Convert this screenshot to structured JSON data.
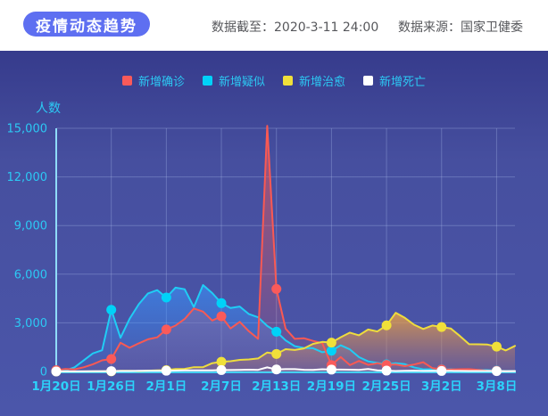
{
  "header": {
    "title_badge": "疫情动态趋势",
    "data_cutoff": "数据截至：2020-3-11 24:00",
    "data_source": "数据来源：国家卫健委"
  },
  "colors": {
    "badge_bg": "#5e6ff1",
    "header_text": "#56575b",
    "panel_top": "#363b8c",
    "panel_bottom": "#4b56aa",
    "grid": "rgba(173,192,240,0.32)",
    "y_axis_line": "#8fdcf8",
    "x_axis_line": "#45d0f2",
    "y_tick_label": "#2cc9f4",
    "x_tick_label": "#2cd3fb",
    "legend_text": "#2cc9f4"
  },
  "chart_data": {
    "type": "area",
    "title": "疫情动态趋势",
    "ylabel": "人数",
    "grid": true,
    "legend_position": "top",
    "ylim": [
      0,
      15000
    ],
    "yticks": [
      0,
      3000,
      6000,
      9000,
      12000,
      15000
    ],
    "ytick_labels": [
      "0",
      "3,000",
      "6,000",
      "9,000",
      "12,000",
      "15,000"
    ],
    "x_tick_indices": [
      0,
      6,
      12,
      18,
      24,
      30,
      36,
      42,
      48
    ],
    "x_tick_labels": [
      "1月20日",
      "1月26日",
      "2月1日",
      "2月7日",
      "2月13日",
      "2月19日",
      "2月25日",
      "3月2日",
      "3月8日"
    ],
    "dates": [
      "1.20",
      "1.21",
      "1.22",
      "1.23",
      "1.24",
      "1.25",
      "1.26",
      "1.27",
      "1.28",
      "1.29",
      "1.30",
      "1.31",
      "2.1",
      "2.2",
      "2.3",
      "2.4",
      "2.5",
      "2.6",
      "2.7",
      "2.8",
      "2.9",
      "2.10",
      "2.11",
      "2.12",
      "2.13",
      "2.14",
      "2.15",
      "2.16",
      "2.17",
      "2.18",
      "2.19",
      "2.20",
      "2.21",
      "2.22",
      "2.23",
      "2.24",
      "2.25",
      "2.26",
      "2.27",
      "2.28",
      "2.29",
      "3.1",
      "3.2",
      "3.3",
      "3.4",
      "3.5",
      "3.6",
      "3.7",
      "3.8",
      "3.9",
      "3.10"
    ],
    "series": [
      {
        "key": "suspected",
        "name": "新增疑似",
        "color": "#20cdf5",
        "swatch": "#00d2f8",
        "area_fill": [
          "rgba(56,150,255,0.60)",
          "rgba(56,150,255,0.06)"
        ],
        "values": [
          27,
          53,
          257,
          680,
          1118,
          1309,
          3806,
          2077,
          3248,
          4148,
          4812,
          5019,
          4562,
          5173,
          5072,
          3971,
          5328,
          4833,
          4214,
          3916,
          4008,
          3536,
          3342,
          2807,
          2450,
          1918,
          1563,
          1451,
          1432,
          1185,
          1277,
          1614,
          1361,
          882,
          620,
          530,
          439,
          508,
          452,
          248,
          132,
          141,
          129,
          143,
          102,
          102,
          99,
          84,
          57,
          31,
          31
        ]
      },
      {
        "key": "confirmed",
        "name": "新增确诊",
        "color": "#f95953",
        "swatch": "#fa5a5a",
        "area_fill": [
          "rgba(249,89,83,0.55)",
          "rgba(249,89,83,0.08)"
        ],
        "values": [
          77,
          149,
          131,
          259,
          444,
          688,
          769,
          1771,
          1459,
          1737,
          1982,
          2102,
          2590,
          2829,
          3235,
          3887,
          3694,
          3143,
          3399,
          2656,
          3062,
          2478,
          2015,
          15152,
          5090,
          2641,
          2009,
          2048,
          1886,
          1749,
          394,
          889,
          397,
          648,
          409,
          508,
          406,
          433,
          327,
          427,
          573,
          202,
          125,
          119,
          139,
          143,
          99,
          44,
          40,
          19,
          24
        ]
      },
      {
        "key": "cured",
        "name": "新增治愈",
        "color": "#eedc3d",
        "swatch": "#f0e03a",
        "area_fill": [
          "rgba(236,164,66,0.82)",
          "rgba(200,120,100,0.22)"
        ],
        "values": [
          0,
          0,
          0,
          6,
          3,
          11,
          9,
          38,
          43,
          21,
          47,
          72,
          85,
          147,
          157,
          262,
          261,
          510,
          600,
          632,
          716,
          744,
          802,
          1171,
          1081,
          1373,
          1323,
          1425,
          1701,
          1824,
          1779,
          2109,
          2393,
          2230,
          2589,
          2467,
          2842,
          3622,
          3307,
          2885,
          2623,
          2837,
          2742,
          2652,
          2189,
          1681,
          1678,
          1661,
          1535,
          1297,
          1578
        ]
      },
      {
        "key": "deaths",
        "name": "新增死亡",
        "color": "#ffffff",
        "swatch": "#ffffff",
        "area_fill": null,
        "values": [
          3,
          3,
          8,
          8,
          16,
          15,
          24,
          26,
          26,
          38,
          43,
          46,
          45,
          57,
          64,
          65,
          73,
          73,
          86,
          89,
          97,
          108,
          97,
          254,
          121,
          143,
          142,
          105,
          98,
          136,
          114,
          118,
          109,
          97,
          150,
          71,
          52,
          29,
          44,
          47,
          35,
          42,
          31,
          38,
          31,
          30,
          28,
          27,
          22,
          17,
          22
        ]
      }
    ]
  }
}
